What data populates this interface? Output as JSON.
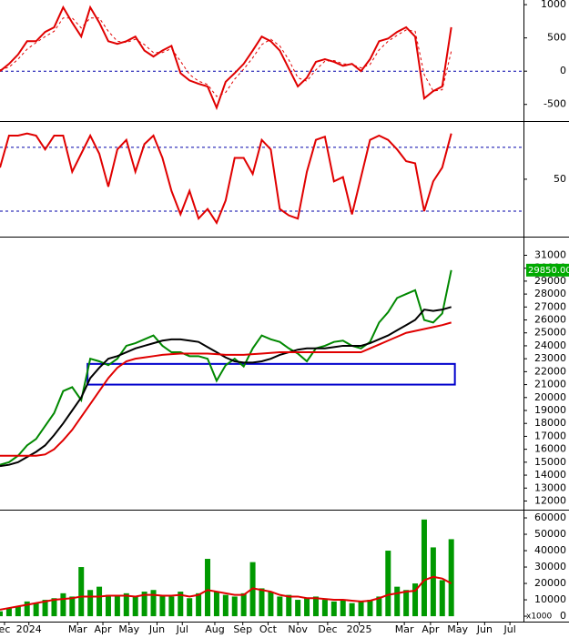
{
  "chart_data": [
    {
      "type": "line",
      "xlim": [
        0,
        58
      ],
      "ylim": [
        -750,
        1070
      ],
      "yticks": [
        1000,
        500,
        0,
        -500
      ],
      "ref_lines": [
        0
      ],
      "series": [
        {
          "color": "#e00000",
          "values": [
            0,
            110,
            250,
            450,
            450,
            590,
            660,
            960,
            730,
            520,
            960,
            730,
            450,
            410,
            450,
            520,
            310,
            220,
            310,
            380,
            -30,
            -140,
            -190,
            -230,
            -550,
            -160,
            -30,
            110,
            310,
            520,
            450,
            310,
            40,
            -230,
            -100,
            140,
            180,
            140,
            80,
            110,
            0,
            180,
            450,
            490,
            590,
            660,
            520,
            -410,
            -300,
            -230,
            660
          ]
        },
        {
          "color": "#e00000",
          "dash": true,
          "values": [
            20,
            60,
            180,
            330,
            430,
            520,
            600,
            800,
            800,
            650,
            800,
            800,
            600,
            450,
            430,
            480,
            400,
            280,
            280,
            340,
            150,
            -50,
            -150,
            -200,
            -380,
            -320,
            -120,
            30,
            200,
            400,
            480,
            380,
            170,
            -100,
            -150,
            20,
            150,
            160,
            110,
            100,
            50,
            100,
            320,
            450,
            540,
            620,
            600,
            -50,
            -300,
            -280,
            300
          ]
        }
      ]
    },
    {
      "type": "line",
      "xlim": [
        0,
        58
      ],
      "ylim": [
        -4,
        103
      ],
      "yticks": [
        50
      ],
      "ref_lines": [
        80,
        20
      ],
      "series": [
        {
          "color": "#e00000",
          "values": [
            61,
            91,
            91,
            93,
            91,
            78,
            91,
            91,
            57,
            74,
            91,
            74,
            43,
            78,
            87,
            57,
            83,
            91,
            70,
            39,
            17,
            39,
            13,
            22,
            9,
            30,
            70,
            70,
            55,
            87,
            78,
            22,
            16,
            13,
            57,
            87,
            90,
            48,
            52,
            17,
            52,
            87,
            91,
            87,
            78,
            67,
            65,
            20,
            48,
            61,
            93
          ]
        }
      ]
    },
    {
      "type": "line",
      "xlim": [
        0,
        58
      ],
      "ylim": [
        11400,
        32300
      ],
      "yticks": [
        12000,
        13000,
        14000,
        15000,
        16000,
        17000,
        18000,
        19000,
        20000,
        21000,
        22000,
        23000,
        24000,
        25000,
        26000,
        27000,
        28000,
        29000,
        30000,
        31000
      ],
      "box": {
        "x": [
          9.7,
          50.4
        ],
        "y": [
          21000,
          22600
        ],
        "color": "#0000cc"
      },
      "last_label": {
        "value": 29850,
        "label": "29850.00"
      },
      "series": [
        {
          "color": "#008800",
          "values": [
            14800,
            15000,
            15500,
            16300,
            16800,
            17800,
            18800,
            20500,
            20800,
            19800,
            23000,
            22800,
            22500,
            23000,
            24000,
            24200,
            24500,
            24800,
            24000,
            23500,
            23500,
            23200,
            23200,
            23000,
            21300,
            22500,
            23000,
            22400,
            23800,
            24800,
            24500,
            24300,
            23800,
            23400,
            22800,
            23800,
            24000,
            24300,
            24400,
            24000,
            23800,
            24300,
            25800,
            26600,
            27700,
            28000,
            28300,
            26000,
            25800,
            26500,
            29850
          ]
        },
        {
          "color": "#000000",
          "values": [
            14700,
            14800,
            15000,
            15400,
            15800,
            16300,
            17100,
            18000,
            19000,
            20000,
            21500,
            22300,
            23000,
            23200,
            23500,
            23800,
            24000,
            24200,
            24400,
            24500,
            24500,
            24400,
            24300,
            23900,
            23500,
            23100,
            22800,
            22700,
            22700,
            22800,
            23000,
            23300,
            23500,
            23700,
            23800,
            23800,
            23800,
            23900,
            24000,
            24000,
            24000,
            24200,
            24500,
            24800,
            25200,
            25600,
            26000,
            26800,
            26700,
            26800,
            27000
          ]
        },
        {
          "color": "#e00000",
          "values": [
            15500,
            15500,
            15500,
            15500,
            15500,
            15600,
            16000,
            16700,
            17500,
            18500,
            19500,
            20500,
            21500,
            22300,
            22800,
            23000,
            23100,
            23200,
            23300,
            23350,
            23400,
            23400,
            23400,
            23400,
            23350,
            23300,
            23300,
            23300,
            23350,
            23400,
            23450,
            23500,
            23500,
            23500,
            23500,
            23500,
            23500,
            23500,
            23500,
            23500,
            23500,
            23800,
            24100,
            24400,
            24700,
            25000,
            25150,
            25300,
            25450,
            25600,
            25800
          ]
        }
      ]
    },
    {
      "type": "bar",
      "xlim": [
        0,
        58
      ],
      "ylim": [
        -3300,
        63900
      ],
      "yticks": [
        0,
        10000,
        20000,
        30000,
        40000,
        50000,
        60000
      ],
      "unit": "x1000",
      "xticks": [
        {
          "value": 0.5,
          "label": "ec"
        },
        {
          "value": 3.2,
          "label": "2024"
        },
        {
          "value": 8.6,
          "label": "Mar"
        },
        {
          "value": 11.4,
          "label": "Apr"
        },
        {
          "value": 14.3,
          "label": "May"
        },
        {
          "value": 17.4,
          "label": "Jun"
        },
        {
          "value": 20.2,
          "label": "Jul"
        },
        {
          "value": 23.8,
          "label": "Aug"
        },
        {
          "value": 26.9,
          "label": "Sep"
        },
        {
          "value": 29.7,
          "label": "Oct"
        },
        {
          "value": 33,
          "label": "Nov"
        },
        {
          "value": 36.3,
          "label": "Dec"
        },
        {
          "value": 39.8,
          "label": "2025"
        },
        {
          "value": 44.8,
          "label": "Mar"
        },
        {
          "value": 47.7,
          "label": "Apr"
        },
        {
          "value": 50.7,
          "label": "May"
        },
        {
          "value": 53.7,
          "label": "Jun"
        },
        {
          "value": 56.5,
          "label": "Jul"
        }
      ],
      "series": [
        {
          "color": "#009900",
          "kind": "bar",
          "values": [
            3000,
            5000,
            6000,
            9000,
            8000,
            10000,
            11000,
            14000,
            12000,
            30000,
            16000,
            18000,
            13000,
            12000,
            14000,
            12000,
            15000,
            16000,
            13000,
            12000,
            15000,
            11000,
            14000,
            35000,
            15000,
            13000,
            12000,
            14000,
            33000,
            17000,
            15000,
            12000,
            13000,
            10000,
            11000,
            12000,
            10000,
            9000,
            10000,
            8000,
            9000,
            10000,
            12000,
            40000,
            18000,
            16000,
            20000,
            59000,
            42000,
            22000,
            47000
          ]
        },
        {
          "color": "#e00000",
          "kind": "line",
          "values": [
            4000,
            5000,
            6000,
            7000,
            8000,
            9000,
            10000,
            10500,
            11000,
            12000,
            12000,
            12000,
            12500,
            12500,
            12500,
            12000,
            13000,
            13000,
            12500,
            12500,
            13000,
            12000,
            13000,
            16000,
            15000,
            14000,
            13000,
            13000,
            17000,
            16000,
            15000,
            13000,
            12000,
            12000,
            11000,
            11000,
            10500,
            10000,
            10000,
            9500,
            9000,
            9500,
            11000,
            13000,
            14000,
            15000,
            15500,
            22000,
            24000,
            23000,
            20000
          ]
        }
      ]
    }
  ]
}
